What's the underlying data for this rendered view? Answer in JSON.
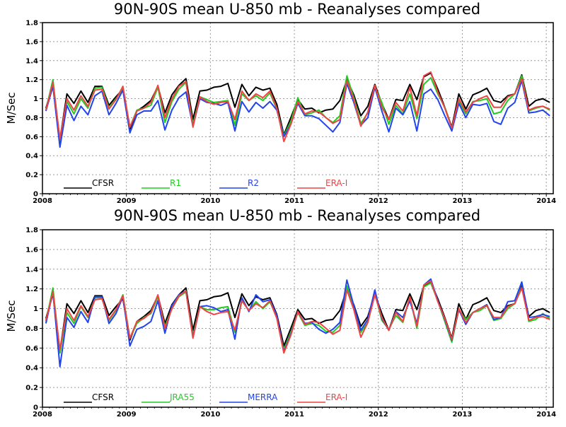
{
  "chart_data": [
    {
      "type": "line",
      "title": "90N-90S mean U-850 mb - Reanalyses compared",
      "ylabel": "M/Sec",
      "ylim": [
        0,
        1.8
      ],
      "yticks": [
        "0",
        "0.2",
        "0.4",
        "0.6",
        "0.8",
        "1",
        "1.2",
        "1.4",
        "1.6",
        "1.8"
      ],
      "xlim": [
        2008,
        2014.083
      ],
      "xticks": [
        "2008",
        "2009",
        "2010",
        "2011",
        "2012",
        "2013",
        "2014"
      ],
      "grid": true,
      "legend_position": "bottom",
      "series": [
        {
          "name": "CFSR",
          "color": "#000000",
          "values": [
            0.9,
            1.15,
            0.57,
            1.05,
            0.95,
            1.08,
            0.96,
            1.13,
            1.13,
            0.93,
            1.02,
            1.1,
            0.68,
            0.87,
            0.92,
            0.98,
            1.13,
            0.85,
            1.04,
            1.14,
            1.21,
            0.78,
            1.08,
            1.09,
            1.12,
            1.13,
            1.16,
            0.91,
            1.15,
            1.03,
            1.12,
            1.09,
            1.11,
            0.94,
            0.62,
            0.8,
            0.99,
            0.89,
            0.9,
            0.85,
            0.88,
            0.89,
            0.98,
            1.2,
            1.04,
            0.82,
            0.92,
            1.15,
            0.95,
            0.78,
            0.99,
            0.98,
            1.15,
            0.99,
            1.23,
            1.27,
            1.1,
            0.91,
            0.7,
            1.05,
            0.89,
            1.04,
            1.07,
            1.11,
            0.98,
            0.96,
            1.03,
            1.05,
            1.25,
            0.92,
            0.98,
            1.0,
            0.96
          ]
        },
        {
          "name": "R1",
          "color": "#22cc22",
          "values": [
            0.88,
            1.2,
            0.55,
            0.97,
            0.84,
            1.0,
            0.9,
            1.11,
            1.12,
            0.9,
            1.0,
            1.1,
            0.7,
            0.88,
            0.9,
            0.93,
            1.12,
            0.75,
            0.97,
            1.1,
            1.17,
            0.73,
            1.02,
            0.99,
            0.96,
            0.97,
            0.98,
            0.72,
            1.05,
            0.98,
            1.03,
            0.98,
            1.06,
            0.89,
            0.61,
            0.76,
            1.01,
            0.83,
            0.85,
            0.88,
            0.8,
            0.75,
            0.82,
            1.24,
            1.01,
            0.74,
            0.85,
            1.12,
            0.96,
            0.73,
            0.93,
            0.84,
            1.05,
            0.79,
            1.15,
            1.22,
            1.05,
            0.91,
            0.69,
            0.97,
            0.84,
            0.97,
            0.98,
            1.0,
            0.84,
            0.86,
            0.98,
            1.05,
            1.24,
            0.87,
            0.9,
            0.92,
            0.88
          ]
        },
        {
          "name": "R2",
          "color": "#2244ee",
          "values": [
            0.87,
            1.13,
            0.49,
            0.93,
            0.77,
            0.92,
            0.83,
            1.03,
            1.08,
            0.83,
            0.95,
            1.09,
            0.64,
            0.83,
            0.87,
            0.87,
            0.98,
            0.67,
            0.88,
            1.01,
            1.07,
            0.71,
            1.0,
            0.96,
            0.95,
            0.93,
            0.96,
            0.66,
            0.97,
            0.86,
            0.96,
            0.9,
            0.97,
            0.88,
            0.6,
            0.73,
            0.95,
            0.82,
            0.82,
            0.79,
            0.72,
            0.65,
            0.75,
            1.16,
            0.96,
            0.72,
            0.8,
            1.12,
            0.87,
            0.65,
            0.9,
            0.83,
            0.97,
            0.66,
            1.05,
            1.1,
            0.99,
            0.82,
            0.66,
            0.95,
            0.8,
            0.94,
            0.93,
            0.95,
            0.76,
            0.73,
            0.9,
            0.96,
            1.19,
            0.85,
            0.86,
            0.88,
            0.82
          ]
        },
        {
          "name": "ERA-I",
          "color": "#ee4444",
          "values": [
            0.88,
            1.17,
            0.58,
            1.0,
            0.88,
            1.03,
            0.92,
            1.09,
            1.1,
            0.89,
            0.99,
            1.13,
            0.7,
            0.87,
            0.9,
            0.96,
            1.14,
            0.8,
            1.0,
            1.13,
            1.18,
            0.7,
            1.02,
            0.97,
            0.94,
            0.96,
            0.97,
            0.78,
            1.08,
            0.98,
            1.05,
            1.01,
            1.08,
            0.9,
            0.55,
            0.73,
            0.97,
            0.84,
            0.87,
            0.86,
            0.8,
            0.74,
            0.78,
            1.19,
            0.99,
            0.71,
            0.86,
            1.14,
            0.91,
            0.78,
            0.96,
            0.87,
            1.12,
            0.82,
            1.24,
            1.28,
            1.07,
            0.9,
            0.69,
            1.0,
            0.86,
            0.96,
            1.0,
            1.03,
            0.91,
            0.91,
            1.02,
            1.05,
            1.21,
            0.88,
            0.91,
            0.92,
            0.89
          ]
        }
      ]
    },
    {
      "type": "line",
      "title": "90N-90S mean U-850 mb - Reanalyses compared",
      "ylabel": "M/Sec",
      "ylim": [
        0,
        1.8
      ],
      "yticks": [
        "0",
        "0.2",
        "0.4",
        "0.6",
        "0.8",
        "1",
        "1.2",
        "1.4",
        "1.6",
        "1.8"
      ],
      "xlim": [
        2008,
        2014.083
      ],
      "xticks": [
        "2008",
        "2009",
        "2010",
        "2011",
        "2012",
        "2013",
        "2014"
      ],
      "grid": true,
      "legend_position": "bottom",
      "series": [
        {
          "name": "CFSR",
          "color": "#000000",
          "values": [
            0.9,
            1.15,
            0.57,
            1.05,
            0.95,
            1.08,
            0.96,
            1.13,
            1.13,
            0.93,
            1.02,
            1.1,
            0.68,
            0.87,
            0.92,
            0.98,
            1.13,
            0.85,
            1.04,
            1.14,
            1.21,
            0.78,
            1.08,
            1.09,
            1.12,
            1.13,
            1.16,
            0.91,
            1.15,
            1.03,
            1.12,
            1.09,
            1.11,
            0.94,
            0.62,
            0.8,
            0.99,
            0.89,
            0.9,
            0.85,
            0.88,
            0.89,
            0.98,
            1.2,
            1.04,
            0.82,
            0.92,
            1.15,
            0.95,
            0.78,
            0.99,
            0.98,
            1.15,
            0.99,
            1.23,
            1.27,
            1.1,
            0.91,
            0.7,
            1.05,
            0.89,
            1.04,
            1.07,
            1.11,
            0.98,
            0.96,
            1.03,
            1.05,
            1.25,
            0.92,
            0.98,
            1.0,
            0.96
          ]
        },
        {
          "name": "JRA55",
          "color": "#22cc22",
          "values": [
            0.87,
            1.21,
            0.55,
            0.96,
            0.85,
            1.02,
            0.91,
            1.11,
            1.11,
            0.88,
            0.98,
            1.14,
            0.7,
            0.85,
            0.91,
            0.95,
            1.12,
            0.82,
            1.0,
            1.12,
            1.17,
            0.73,
            1.02,
            0.99,
            0.99,
            1.01,
            1.02,
            0.76,
            1.08,
            0.98,
            1.07,
            1.0,
            1.07,
            0.91,
            0.58,
            0.76,
            0.96,
            0.83,
            0.85,
            0.83,
            0.77,
            0.76,
            0.83,
            1.23,
            1.0,
            0.76,
            0.86,
            1.16,
            0.88,
            0.79,
            0.93,
            0.86,
            1.12,
            0.8,
            1.22,
            1.26,
            1.08,
            0.87,
            0.66,
            0.99,
            0.89,
            0.96,
            0.98,
            1.03,
            0.88,
            0.9,
            1.0,
            1.05,
            1.27,
            0.87,
            0.89,
            0.95,
            0.9
          ]
        },
        {
          "name": "MERRA",
          "color": "#2244ee",
          "values": [
            0.85,
            1.17,
            0.41,
            0.91,
            0.81,
            0.97,
            0.86,
            1.12,
            1.12,
            0.85,
            0.95,
            1.12,
            0.62,
            0.79,
            0.82,
            0.87,
            1.08,
            0.75,
            1.03,
            1.14,
            1.18,
            0.71,
            1.02,
            1.03,
            1.01,
            0.97,
            0.99,
            0.69,
            1.11,
            0.97,
            1.14,
            1.07,
            1.09,
            0.93,
            0.56,
            0.74,
            0.97,
            0.85,
            0.86,
            0.79,
            0.75,
            0.79,
            0.86,
            1.29,
            1.03,
            0.78,
            0.89,
            1.19,
            0.9,
            0.78,
            0.97,
            0.91,
            1.08,
            0.85,
            1.24,
            1.3,
            1.08,
            0.89,
            0.68,
            0.99,
            0.84,
            0.96,
            1.0,
            1.04,
            0.89,
            0.91,
            1.07,
            1.08,
            1.27,
            0.91,
            0.92,
            0.94,
            0.92
          ]
        },
        {
          "name": "ERA-I",
          "color": "#ee4444",
          "values": [
            0.88,
            1.17,
            0.58,
            1.0,
            0.88,
            1.03,
            0.92,
            1.09,
            1.1,
            0.89,
            0.99,
            1.13,
            0.7,
            0.87,
            0.9,
            0.96,
            1.14,
            0.8,
            1.0,
            1.13,
            1.18,
            0.7,
            1.02,
            0.97,
            0.94,
            0.96,
            0.97,
            0.78,
            1.08,
            0.98,
            1.05,
            1.01,
            1.08,
            0.9,
            0.55,
            0.73,
            0.97,
            0.84,
            0.87,
            0.86,
            0.8,
            0.74,
            0.78,
            1.19,
            0.99,
            0.71,
            0.86,
            1.14,
            0.91,
            0.78,
            0.96,
            0.87,
            1.12,
            0.82,
            1.24,
            1.28,
            1.07,
            0.9,
            0.69,
            1.0,
            0.86,
            0.96,
            1.0,
            1.03,
            0.91,
            0.91,
            1.02,
            1.05,
            1.21,
            0.88,
            0.91,
            0.92,
            0.89
          ]
        }
      ]
    }
  ]
}
